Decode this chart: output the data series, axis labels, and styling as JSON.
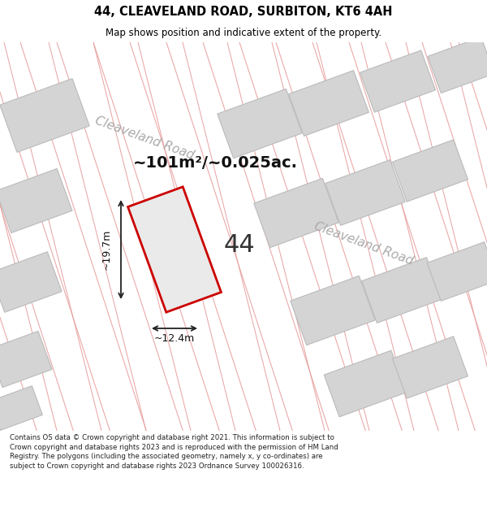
{
  "title": "44, CLEAVELAND ROAD, SURBITON, KT6 4AH",
  "subtitle": "Map shows position and indicative extent of the property.",
  "area_text": "~101m²/~0.025ac.",
  "dim_width": "~12.4m",
  "dim_height": "~19.7m",
  "label": "44",
  "footer": "Contains OS data © Crown copyright and database right 2021. This information is subject to Crown copyright and database rights 2023 and is reproduced with the permission of HM Land Registry. The polygons (including the associated geometry, namely x, y co-ordinates) are subject to Crown copyright and database rights 2023 Ordnance Survey 100026316.",
  "map_bg": "#ebebeb",
  "building_fill": "#d4d4d4",
  "building_edge": "#bbbbbb",
  "highlight_fill": "#eaeaea",
  "highlight_edge": "#cc0000",
  "road_label_color": "#aaaaaa",
  "title_color": "#000000",
  "footer_color": "#222222",
  "arrow_color": "#222222",
  "road_line_color": "#e8a0a0"
}
